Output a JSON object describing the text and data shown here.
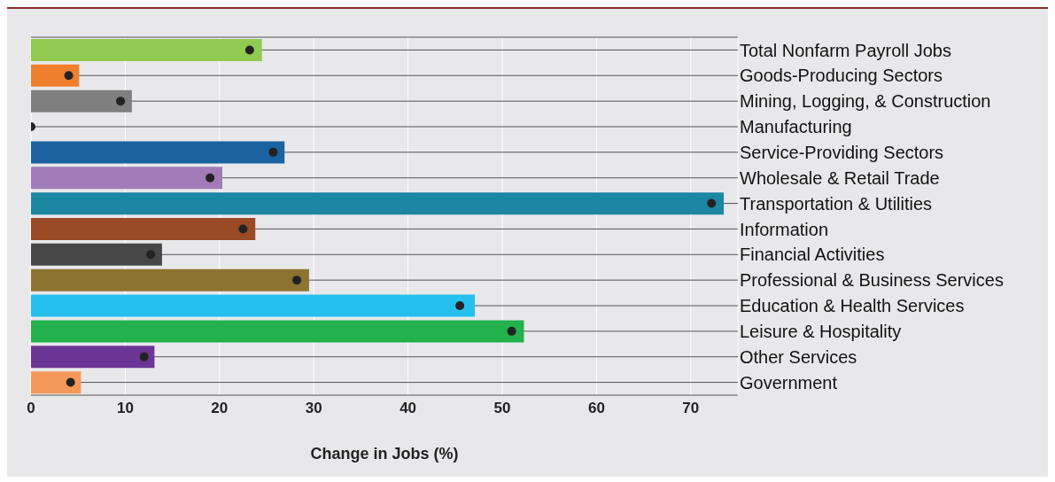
{
  "chart_data": {
    "type": "bar",
    "orientation": "horizontal",
    "xlabel": "Change in Jobs (%)",
    "categories": [
      "Total Nonfarm Payroll Jobs",
      "Goods-Producing Sectors",
      "Mining, Logging, & Construction",
      "Manufacturing",
      "Service-Providing Sectors",
      "Wholesale & Retail Trade",
      "Transportation & Utilities",
      "Information",
      "Financial Activities",
      "Professional & Business Services",
      "Education & Health Services",
      "Leisure & Hospitality",
      "Other Services",
      "Government"
    ],
    "series": [
      {
        "colors": [
          "#92c950",
          "#f07f2e",
          "#7f7f7f",
          "#1a3d6e",
          "#1a63a0",
          "#a07bb8",
          "#1b87a3",
          "#9a4a25",
          "#474747",
          "#8c7330",
          "#26c0ef",
          "#22b14c",
          "#6b3596",
          "#f5995b"
        ],
        "values": [
          24.5,
          5.1,
          10.7,
          0,
          26.9,
          20.3,
          73.5,
          23.8,
          13.9,
          29.5,
          47.1,
          52.3,
          13.1,
          5.3
        ]
      },
      {
        "type": "scatter",
        "color": "#222222",
        "values": [
          23.2,
          4.0,
          9.5,
          0,
          25.7,
          19.0,
          72.2,
          22.5,
          12.7,
          28.2,
          45.5,
          51.0,
          12.0,
          4.2
        ]
      }
    ],
    "xlim": [
      0,
      75
    ],
    "xticks": [
      0,
      10,
      20,
      30,
      40,
      50,
      60,
      70
    ],
    "grid": true,
    "legend": false,
    "marker": "circle"
  }
}
